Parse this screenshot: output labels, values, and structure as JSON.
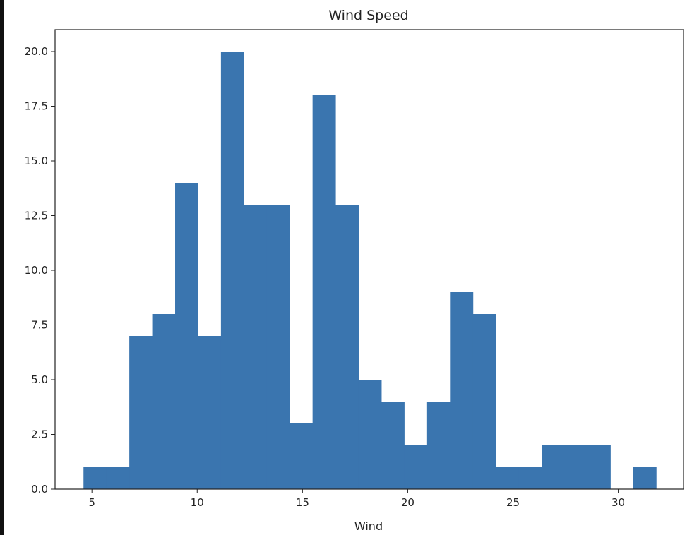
{
  "chart_data": {
    "type": "bar",
    "subtype": "histogram",
    "title": "Wind Speed",
    "xlabel": "Wind",
    "ylabel": "",
    "bin_start": 4.6,
    "bin_width": 1.088,
    "counts": [
      1,
      1,
      7,
      8,
      14,
      7,
      20,
      13,
      13,
      3,
      18,
      13,
      5,
      4,
      2,
      4,
      9,
      8,
      1,
      1,
      2,
      2,
      2,
      0,
      1
    ],
    "xlim": [
      3.25,
      33.1
    ],
    "ylim": [
      0,
      21
    ],
    "xticks": [
      "5",
      "10",
      "15",
      "20",
      "25",
      "30"
    ],
    "xtick_values": [
      5,
      10,
      15,
      20,
      25,
      30
    ],
    "yticks": [
      "0.0",
      "2.5",
      "5.0",
      "7.5",
      "10.0",
      "12.5",
      "15.0",
      "17.5",
      "20.0"
    ],
    "ytick_values": [
      0,
      2.5,
      5,
      7.5,
      10,
      12.5,
      15,
      17.5,
      20
    ],
    "grid": false,
    "bar_color": "#3a75af"
  }
}
